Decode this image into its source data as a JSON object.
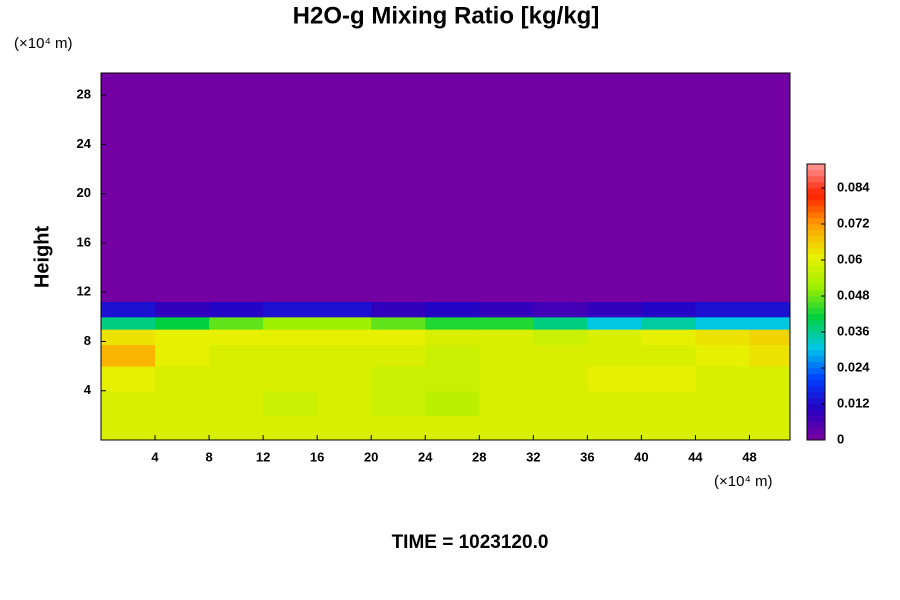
{
  "chart_data": {
    "type": "heatmap",
    "title": "H2O-g Mixing Ratio [kg/kg]",
    "y_unit": "(×10⁴ m)",
    "x_unit": "(×10⁴ m)",
    "ylabel": "Height",
    "footer": "TIME = 1023120.0",
    "xlim": [
      0,
      51
    ],
    "ylim": [
      0,
      29.8
    ],
    "xticks": [
      4,
      8,
      12,
      16,
      20,
      24,
      28,
      32,
      36,
      40,
      44,
      48
    ],
    "yticks": [
      4,
      8,
      12,
      16,
      20,
      24,
      28
    ],
    "clim": [
      0,
      0.092
    ],
    "n_levels": 46,
    "cticks": [
      0,
      0.012,
      0.024,
      0.036,
      0.048,
      0.06,
      0.072,
      0.084
    ],
    "colormap": [
      "#7a00a0",
      "#2800c0",
      "#0040ff",
      "#00c8e8",
      "#00d040",
      "#a0f000",
      "#e8f000",
      "#ffa000",
      "#ff2000",
      "#ff9a9a"
    ],
    "x": [
      2,
      6,
      10,
      14,
      18,
      22,
      26,
      30,
      34,
      38,
      42,
      46,
      50
    ],
    "y": [
      1,
      3,
      5,
      7,
      8.5,
      9.5,
      10.5,
      12,
      20,
      28
    ],
    "z": [
      [
        0.058,
        0.058,
        0.058,
        0.058,
        0.058,
        0.058,
        0.058,
        0.058,
        0.058,
        0.058,
        0.058,
        0.058,
        0.058
      ],
      [
        0.058,
        0.058,
        0.058,
        0.056,
        0.058,
        0.056,
        0.055,
        0.058,
        0.058,
        0.058,
        0.058,
        0.058,
        0.058
      ],
      [
        0.06,
        0.058,
        0.058,
        0.058,
        0.058,
        0.056,
        0.056,
        0.058,
        0.058,
        0.06,
        0.06,
        0.058,
        0.058
      ],
      [
        0.068,
        0.06,
        0.058,
        0.058,
        0.058,
        0.058,
        0.056,
        0.058,
        0.058,
        0.058,
        0.058,
        0.06,
        0.062
      ],
      [
        0.062,
        0.06,
        0.06,
        0.06,
        0.06,
        0.06,
        0.058,
        0.058,
        0.056,
        0.058,
        0.06,
        0.062,
        0.064
      ],
      [
        0.036,
        0.04,
        0.046,
        0.05,
        0.05,
        0.046,
        0.044,
        0.042,
        0.036,
        0.03,
        0.034,
        0.03,
        0.03
      ],
      [
        0.012,
        0.008,
        0.01,
        0.012,
        0.012,
        0.008,
        0.01,
        0.008,
        0.006,
        0.008,
        0.01,
        0.012,
        0.012
      ],
      [
        0,
        0,
        0,
        0,
        0,
        0,
        0,
        0,
        0,
        0,
        0,
        0,
        0
      ],
      [
        0,
        0,
        0,
        0,
        0,
        0,
        0,
        0,
        0,
        0,
        0,
        0,
        0
      ],
      [
        0,
        0,
        0,
        0,
        0,
        0,
        0,
        0,
        0,
        0,
        0,
        0,
        0
      ]
    ]
  }
}
